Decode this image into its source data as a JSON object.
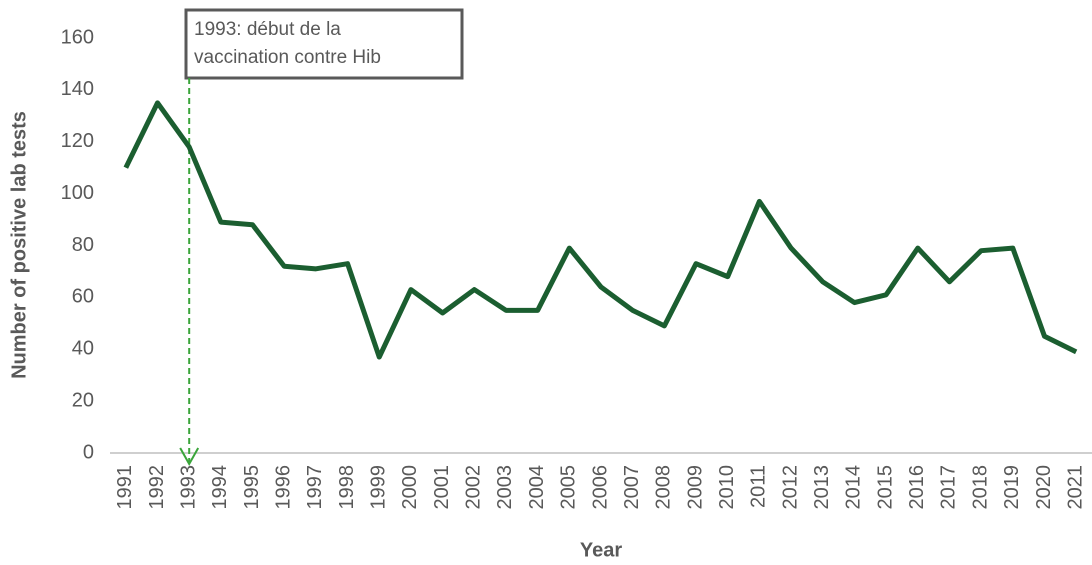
{
  "chart_data": {
    "type": "line",
    "y_label": "Number of positive lab tests",
    "x_label": "Year",
    "annotation": [
      "1993: début de la",
      "vaccination contre Hib"
    ],
    "categories": [
      "1991",
      "1992",
      "1993",
      "1994",
      "1995",
      "1996",
      "1997",
      "1998",
      "1999",
      "2000",
      "2001",
      "2002",
      "2003",
      "2004",
      "2005",
      "2006",
      "2007",
      "2008",
      "2009",
      "2010",
      "2011",
      "2012",
      "2013",
      "2014",
      "2015",
      "2016",
      "2017",
      "2018",
      "2019",
      "2020",
      "2021"
    ],
    "series": [
      {
        "color": "#1b5e30",
        "values": [
          110,
          135,
          118,
          89,
          88,
          72,
          71,
          73,
          37,
          63,
          54,
          63,
          55,
          55,
          79,
          64,
          55,
          49,
          73,
          68,
          97,
          79,
          66,
          58,
          61,
          79,
          66,
          78,
          79,
          45,
          39
        ]
      }
    ],
    "ylim": [
      0,
      160
    ],
    "yticks": [
      0,
      20,
      40,
      60,
      80,
      100,
      120,
      140,
      160
    ],
    "grid": false
  }
}
